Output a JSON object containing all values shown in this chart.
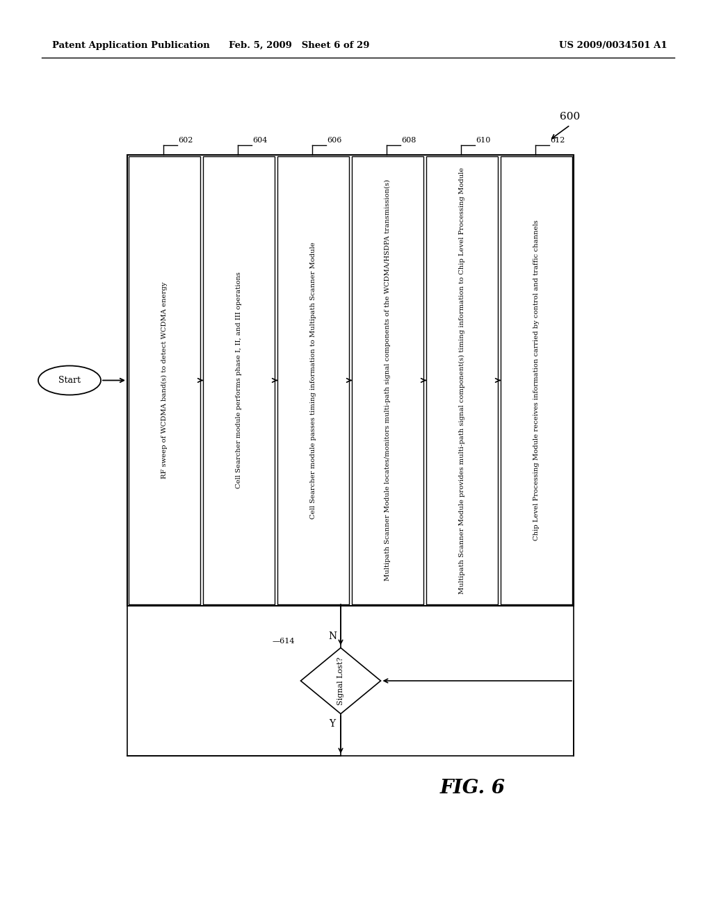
{
  "title_left": "Patent Application Publication",
  "title_center": "Feb. 5, 2009   Sheet 6 of 29",
  "title_right": "US 2009/0034501 A1",
  "fig_label": "FIG. 6",
  "fig_number": "600",
  "start_label": "Start",
  "boxes": [
    {
      "id": "602",
      "text": "RF sweep of WCDMA band(s) to detect WCDMA energy"
    },
    {
      "id": "604",
      "text": "Cell Searcher module performs phase I, II, and III operations"
    },
    {
      "id": "606",
      "text": "Cell Searcher module passes timing information to Multipath Scanner Module"
    },
    {
      "id": "608",
      "text": "Multipath Scanner Module locates/monitors multi-path signal components of the WCDMA/HSDPA transmission(s)"
    },
    {
      "id": "610",
      "text": "Multipath Scanner Module provides multi-path signal component(s) timing information to Chip Level Processing Module"
    },
    {
      "id": "612",
      "text": "Chip Level Processing Module receives information carried by control and traffic channels"
    }
  ],
  "diamond": {
    "id": "614",
    "text": "Signal Lost?",
    "yes": "Y",
    "no": "N"
  },
  "bg_color": "#ffffff",
  "text_color": "#000000"
}
